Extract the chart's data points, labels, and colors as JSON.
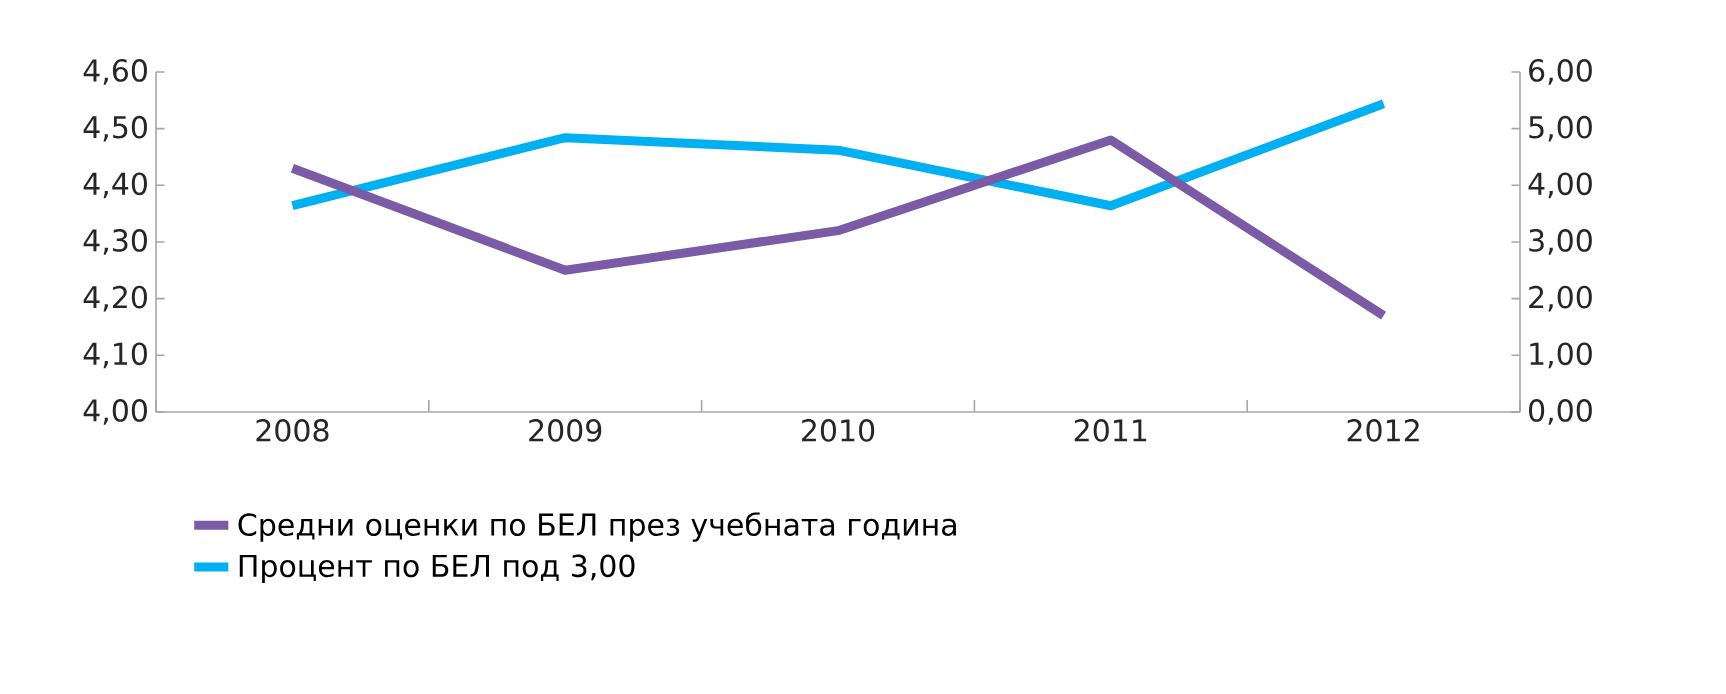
{
  "chart_data": {
    "type": "line",
    "categories": [
      "2008",
      "2009",
      "2010",
      "2011",
      "2012"
    ],
    "series": [
      {
        "name": "Средни оценки по БЕЛ през учебната година",
        "color": "#7b5aa6",
        "values": [
          4.43,
          4.25,
          4.32,
          4.48,
          4.17
        ]
      },
      {
        "name": "Процент по БЕЛ под 3,00",
        "color": "#00b0f0",
        "axis": "y2",
        "values": [
          3.64,
          4.84,
          4.62,
          3.64,
          5.44
        ]
      }
    ],
    "ylim": [
      4.0,
      4.6
    ],
    "yticks": [
      {
        "value": 4.0,
        "label": "4,00"
      },
      {
        "value": 4.1,
        "label": "4,10"
      },
      {
        "value": 4.2,
        "label": "4,20"
      },
      {
        "value": 4.3,
        "label": "4,30"
      },
      {
        "value": 4.4,
        "label": "4,40"
      },
      {
        "value": 4.5,
        "label": "4,50"
      },
      {
        "value": 4.6,
        "label": "4,60"
      }
    ],
    "y2lim": [
      0,
      6
    ],
    "y2ticks": [
      {
        "value": 0,
        "label": "0,00"
      },
      {
        "value": 1,
        "label": "1,00"
      },
      {
        "value": 2,
        "label": "2,00"
      },
      {
        "value": 3,
        "label": "3,00"
      },
      {
        "value": 4,
        "label": "4,00"
      },
      {
        "value": 5,
        "label": "5,00"
      },
      {
        "value": 6,
        "label": "6,00"
      }
    ],
    "legend": "bottom",
    "marker": "none",
    "line_style": "solid"
  }
}
